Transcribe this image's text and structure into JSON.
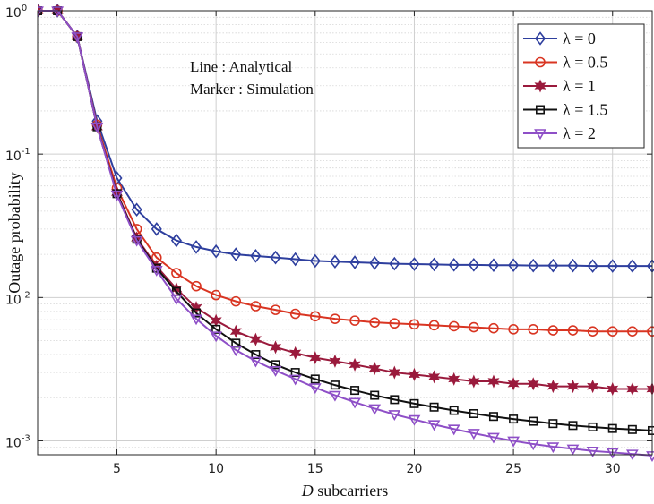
{
  "chart_data": {
    "type": "line",
    "xlabel_prefix": "D",
    "xlabel_rest": " subcarriers",
    "ylabel": "Outage probability",
    "xlim": [
      1,
      32
    ],
    "ylim": [
      0.0008,
      1
    ],
    "yscale": "log",
    "grid": true,
    "legend_position": "top-right",
    "x_ticks": [
      5,
      10,
      15,
      20,
      25,
      30
    ],
    "x_tick_labels": [
      "5",
      "10",
      "15",
      "20",
      "25",
      "30"
    ],
    "y_ticks": [
      1,
      0.1,
      0.01,
      0.001
    ],
    "y_tick_labels": [
      {
        "base": "10",
        "exp": "0"
      },
      {
        "base": "10",
        "exp": "-1"
      },
      {
        "base": "10",
        "exp": "-2"
      },
      {
        "base": "10",
        "exp": "-3"
      }
    ],
    "annotations": [
      "Line : Analytical",
      "Marker : Simulation"
    ],
    "x": [
      1,
      2,
      3,
      4,
      5,
      6,
      7,
      8,
      9,
      10,
      11,
      12,
      13,
      14,
      15,
      16,
      17,
      18,
      19,
      20,
      21,
      22,
      23,
      24,
      25,
      26,
      27,
      28,
      29,
      30,
      31,
      32
    ],
    "series": [
      {
        "name": "λ = 0",
        "color": "#2e3f9e",
        "marker": "diamond",
        "values": [
          1,
          1,
          0.66,
          0.17,
          0.068,
          0.041,
          0.03,
          0.025,
          0.0225,
          0.021,
          0.02,
          0.0195,
          0.019,
          0.0185,
          0.018,
          0.0178,
          0.0176,
          0.0174,
          0.0172,
          0.0171,
          0.017,
          0.0169,
          0.0169,
          0.0168,
          0.0168,
          0.0167,
          0.0167,
          0.0167,
          0.0166,
          0.0166,
          0.0166,
          0.0166
        ]
      },
      {
        "name": "λ = 0.5",
        "color": "#d93522",
        "marker": "circle",
        "values": [
          1,
          1,
          0.66,
          0.16,
          0.058,
          0.03,
          0.019,
          0.0148,
          0.012,
          0.0104,
          0.0094,
          0.0087,
          0.0082,
          0.0077,
          0.0074,
          0.0071,
          0.0069,
          0.0067,
          0.0066,
          0.0065,
          0.0064,
          0.0063,
          0.0062,
          0.0061,
          0.006,
          0.006,
          0.0059,
          0.0059,
          0.0058,
          0.0058,
          0.0058,
          0.0058
        ]
      },
      {
        "name": "λ = 1",
        "color": "#9a1a3c",
        "marker": "hexagram",
        "values": [
          1,
          1,
          0.66,
          0.155,
          0.054,
          0.026,
          0.0165,
          0.0115,
          0.0085,
          0.0069,
          0.0058,
          0.0051,
          0.0045,
          0.0041,
          0.0038,
          0.0036,
          0.0034,
          0.0032,
          0.003,
          0.0029,
          0.0028,
          0.0027,
          0.0026,
          0.0026,
          0.0025,
          0.0025,
          0.0024,
          0.0024,
          0.0024,
          0.0023,
          0.0023,
          0.0023
        ]
      },
      {
        "name": "λ = 1.5",
        "color": "#111111",
        "marker": "square",
        "values": [
          1,
          1,
          0.66,
          0.155,
          0.053,
          0.0255,
          0.016,
          0.011,
          0.0078,
          0.006,
          0.0048,
          0.004,
          0.0034,
          0.003,
          0.0027,
          0.00245,
          0.00225,
          0.00208,
          0.00194,
          0.00182,
          0.00172,
          0.00163,
          0.00155,
          0.00148,
          0.00142,
          0.00137,
          0.00132,
          0.00128,
          0.00125,
          0.00122,
          0.0012,
          0.00118
        ]
      },
      {
        "name": "λ = 2",
        "color": "#8e4fc7",
        "marker": "triangle-down",
        "values": [
          1,
          1,
          0.66,
          0.155,
          0.052,
          0.025,
          0.0155,
          0.0098,
          0.0071,
          0.0054,
          0.0043,
          0.0036,
          0.0031,
          0.0027,
          0.00235,
          0.00208,
          0.00186,
          0.00168,
          0.00153,
          0.00141,
          0.0013,
          0.00121,
          0.00113,
          0.00106,
          0.001,
          0.00095,
          0.00091,
          0.00088,
          0.00085,
          0.00083,
          0.00081,
          0.00079
        ]
      }
    ]
  }
}
